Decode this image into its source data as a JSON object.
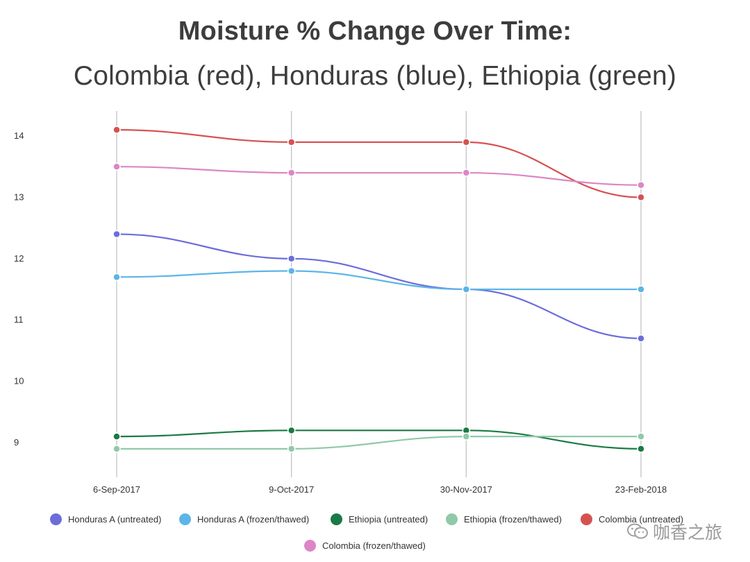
{
  "title_line1": "Moisture % Change Over Time:",
  "title_line2": "Colombia (red), Honduras (blue), Ethiopia (green)",
  "watermark": "咖香之旅",
  "chart_data": {
    "type": "line",
    "categories": [
      "6-Sep-2017",
      "9-Oct-2017",
      "30-Nov-2017",
      "23-Feb-2018"
    ],
    "ylim": [
      8.5,
      14.4
    ],
    "yticks": [
      9,
      10,
      11,
      12,
      13,
      14
    ],
    "grid": "vertical lines at categories",
    "legend_position": "bottom",
    "series": [
      {
        "name": "Honduras A (untreated)",
        "color": "#6b6ddb",
        "values": [
          12.4,
          12.0,
          11.5,
          10.7
        ]
      },
      {
        "name": "Honduras A (frozen/thawed)",
        "color": "#5cb5e6",
        "values": [
          11.7,
          11.8,
          11.5,
          11.5
        ]
      },
      {
        "name": "Ethiopia (untreated)",
        "color": "#1a7a44",
        "values": [
          9.1,
          9.2,
          9.2,
          8.9
        ]
      },
      {
        "name": "Ethiopia (frozen/thawed)",
        "color": "#90c9a8",
        "values": [
          8.9,
          8.9,
          9.1,
          9.1
        ]
      },
      {
        "name": "Colombia (untreated)",
        "color": "#d65252",
        "values": [
          14.1,
          13.9,
          13.9,
          13.0
        ]
      },
      {
        "name": "Colombia (frozen/thawed)",
        "color": "#dc86c6",
        "values": [
          13.5,
          13.4,
          13.4,
          13.2
        ]
      }
    ]
  }
}
